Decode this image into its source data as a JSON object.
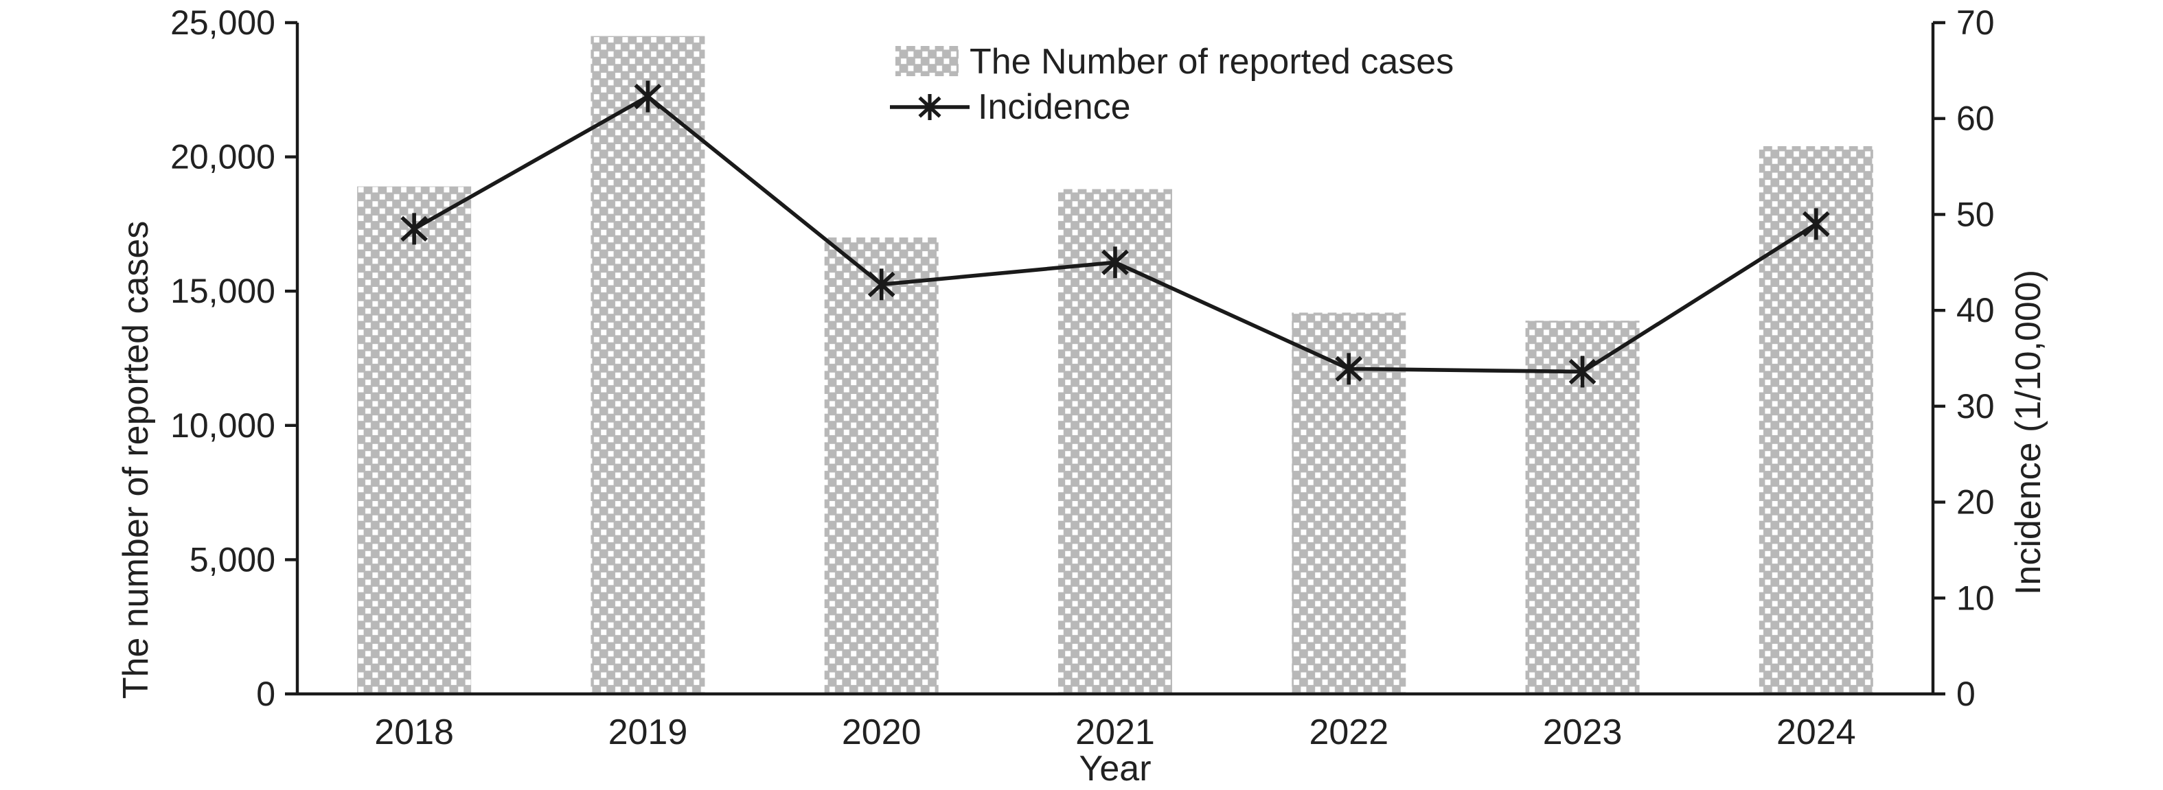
{
  "figure": {
    "description": "Combination chart of reported cases (bars, left axis) and incidence (line with asterisk markers, right axis) by year"
  },
  "chart_data": {
    "type": "combo",
    "categories": [
      "2018",
      "2019",
      "2020",
      "2021",
      "2022",
      "2023",
      "2024"
    ],
    "series": [
      {
        "name": "The Number of reported cases",
        "type": "bar",
        "axis": "left",
        "values": [
          18900,
          24500,
          17000,
          18800,
          14200,
          13900,
          20400
        ]
      },
      {
        "name": "Incidence",
        "type": "line",
        "axis": "right",
        "marker": "asterisk",
        "values": [
          48.5,
          62.3,
          42.7,
          45,
          33.9,
          33.6,
          49
        ]
      }
    ],
    "title": "",
    "xlabel": "Year",
    "ylabel_left": "The number of reported cases",
    "ylabel_right": "Incidence (1/10,000)",
    "y_left_axis": {
      "min": 0,
      "max": 25000,
      "step": 5000,
      "tick_labels": [
        "0",
        "5,000",
        "10,000",
        "15,000",
        "20,000",
        "25,000"
      ]
    },
    "y_right_axis": {
      "min": 0,
      "max": 70,
      "step": 10,
      "tick_labels": [
        "0",
        "10",
        "20",
        "30",
        "40",
        "50",
        "60",
        "70"
      ]
    },
    "legend": {
      "position": "top-center",
      "entries": [
        {
          "label": "The Number of reported cases",
          "swatch": "dotted-bar"
        },
        {
          "label": "Incidence",
          "swatch": "line-asterisk"
        }
      ]
    },
    "grid": false,
    "colors": {
      "bar_fill": "#b8b8b8",
      "bar_dots": "#ffffff",
      "line": "#1a1a1a",
      "axis": "#1a1a1a",
      "text": "#212121",
      "background": "#ffffff"
    }
  }
}
